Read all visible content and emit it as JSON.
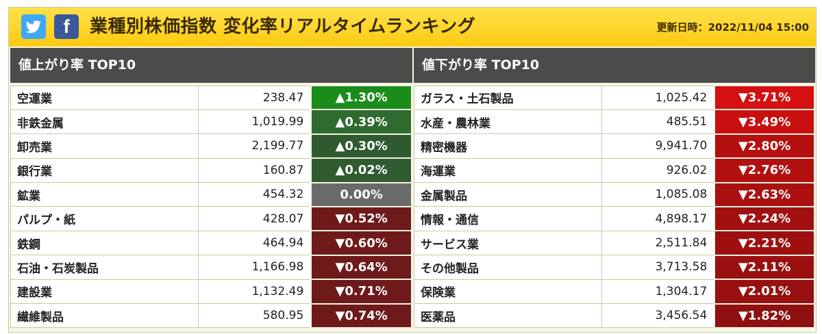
{
  "header": {
    "title": "業種別株価指数 変化率リアルタイムランキング",
    "updated_label": "更新日時：",
    "updated_value": "2022/11/04 15:00",
    "twitter_icon": "twitter-bird-icon",
    "facebook_icon": "facebook-f-icon",
    "facebook_glyph": "f"
  },
  "gainers": {
    "heading": "値上がり率 TOP10",
    "rows": [
      {
        "name": "空運業",
        "value": "238.47",
        "rate": "▲1.30%",
        "color": "#1a8c1a"
      },
      {
        "name": "非鉄金属",
        "value": "1,019.99",
        "rate": "▲0.39%",
        "color": "#2f6a2f"
      },
      {
        "name": "卸売業",
        "value": "2,199.77",
        "rate": "▲0.30%",
        "color": "#2f5a2f"
      },
      {
        "name": "銀行業",
        "value": "160.87",
        "rate": "▲0.02%",
        "color": "#305a30"
      },
      {
        "name": "鉱業",
        "value": "454.32",
        "rate": "0.00%",
        "color": "#6a6a6a"
      },
      {
        "name": "パルプ・紙",
        "value": "428.07",
        "rate": "▼0.52%",
        "color": "#6e1a1a"
      },
      {
        "name": "鉄鋼",
        "value": "464.94",
        "rate": "▼0.60%",
        "color": "#6e1a1a"
      },
      {
        "name": "石油・石炭製品",
        "value": "1,166.98",
        "rate": "▼0.64%",
        "color": "#6e1a1a"
      },
      {
        "name": "建設業",
        "value": "1,132.49",
        "rate": "▼0.71%",
        "color": "#6e1a1a"
      },
      {
        "name": "繊維製品",
        "value": "580.95",
        "rate": "▼0.74%",
        "color": "#6e1a1a"
      }
    ]
  },
  "losers": {
    "heading": "値下がり率 TOP10",
    "rows": [
      {
        "name": "ガラス・土石製品",
        "value": "1,025.42",
        "rate": "▼3.71%",
        "color": "#d41010"
      },
      {
        "name": "水産・農林業",
        "value": "485.51",
        "rate": "▼3.49%",
        "color": "#c81010"
      },
      {
        "name": "精密機器",
        "value": "9,941.70",
        "rate": "▼2.80%",
        "color": "#b51010"
      },
      {
        "name": "海運業",
        "value": "926.02",
        "rate": "▼2.76%",
        "color": "#b21010"
      },
      {
        "name": "金属製品",
        "value": "1,085.08",
        "rate": "▼2.63%",
        "color": "#aa1010"
      },
      {
        "name": "情報・通信",
        "value": "4,898.17",
        "rate": "▼2.24%",
        "color": "#a01010"
      },
      {
        "name": "サービス業",
        "value": "2,511.84",
        "rate": "▼2.21%",
        "color": "#9e1010"
      },
      {
        "name": "その他製品",
        "value": "3,713.58",
        "rate": "▼2.11%",
        "color": "#9a1010"
      },
      {
        "name": "保険業",
        "value": "1,304.17",
        "rate": "▼2.01%",
        "color": "#981010"
      },
      {
        "name": "医薬品",
        "value": "3,456.54",
        "rate": "▼1.82%",
        "color": "#8e1010"
      }
    ]
  }
}
